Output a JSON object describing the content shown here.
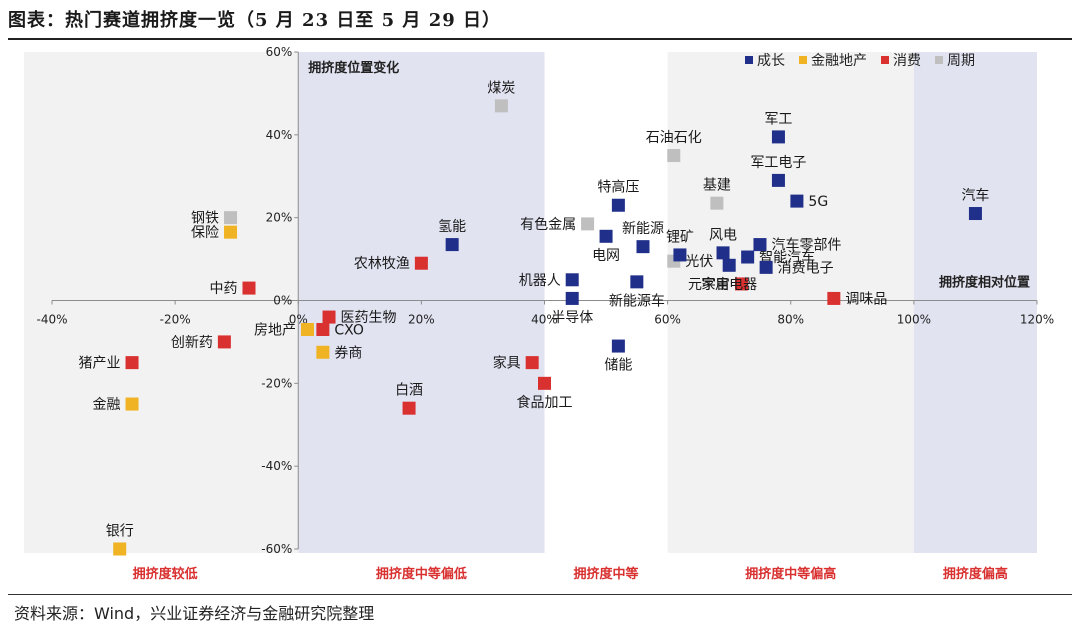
{
  "header": {
    "title": "图表：热门赛道拥挤度一览（5 月 23 日至 5 月 29 日）"
  },
  "footer": {
    "source": "资料来源：Wind，兴业证券经济与金融研究院整理"
  },
  "colors": {
    "成长": "#1f2f8a",
    "金融地产": "#f0b323",
    "消费": "#d93030",
    "周期": "#bfbfbf",
    "band_light": "#f2f2f2",
    "band_blue": "#e1e3f1",
    "zone_label": "#d93030"
  },
  "chart_data": {
    "type": "scatter",
    "title": "",
    "xlabel": "",
    "ylabel": "",
    "xlim": [
      -40,
      120
    ],
    "ylim": [
      -60,
      60
    ],
    "x_ticks": [
      -40,
      -20,
      0,
      20,
      40,
      60,
      80,
      100,
      120
    ],
    "x_tick_labels": [
      "-40%",
      "-20%",
      "0%",
      "20%",
      "40%",
      "60%",
      "80%",
      "100%",
      "120%"
    ],
    "y_ticks": [
      -60,
      -40,
      -20,
      0,
      20,
      40,
      60
    ],
    "y_tick_labels": [
      "-60%",
      "-40%",
      "-20%",
      "0%",
      "20%",
      "40%",
      "60%"
    ],
    "y_axis_title": "拥挤度位置变化",
    "x_axis_title": "拥挤度相对位置",
    "legend": {
      "position": "top-right",
      "entries": [
        {
          "name": "成长",
          "group": "成长"
        },
        {
          "name": "金融地产",
          "group": "金融地产"
        },
        {
          "name": "消费",
          "group": "消费"
        },
        {
          "name": "周期",
          "group": "周期"
        }
      ]
    },
    "zones": [
      {
        "label": "拥挤度较低",
        "x_range": [
          -40,
          0
        ],
        "style": "light"
      },
      {
        "label": "拥挤度中等偏低",
        "x_range": [
          0,
          40
        ],
        "style": "blue"
      },
      {
        "label": "拥挤度中等",
        "x_range": [
          40,
          60
        ],
        "style": "none"
      },
      {
        "label": "拥挤度中等偏高",
        "x_range": [
          60,
          100
        ],
        "style": "light"
      },
      {
        "label": "拥挤度偏高",
        "x_range": [
          100,
          120
        ],
        "style": "blue"
      }
    ],
    "points": [
      {
        "name": "煤炭",
        "group": "周期",
        "x": 33,
        "y": 47,
        "label_pos": "top"
      },
      {
        "name": "石油石化",
        "group": "周期",
        "x": 61,
        "y": 35,
        "label_pos": "top"
      },
      {
        "name": "基建",
        "group": "周期",
        "x": 68,
        "y": 23.5,
        "label_pos": "top"
      },
      {
        "name": "有色金属",
        "group": "周期",
        "x": 47,
        "y": 18.5,
        "label_pos": "left"
      },
      {
        "name": "光伏",
        "group": "周期",
        "x": 61,
        "y": 9.5,
        "label_pos": "right"
      },
      {
        "name": "钢铁",
        "group": "周期",
        "x": -11,
        "y": 20,
        "label_pos": "left"
      },
      {
        "name": "保险",
        "group": "金融地产",
        "x": -11,
        "y": 16.5,
        "label_pos": "left"
      },
      {
        "name": "房地产",
        "group": "金融地产",
        "x": 1.5,
        "y": -7,
        "label_pos": "left"
      },
      {
        "name": "券商",
        "group": "金融地产",
        "x": 4,
        "y": -12.5,
        "label_pos": "right"
      },
      {
        "name": "金融",
        "group": "金融地产",
        "x": -27,
        "y": -25,
        "label_pos": "left"
      },
      {
        "name": "银行",
        "group": "金融地产",
        "x": -29,
        "y": -60,
        "label_pos": "top"
      },
      {
        "name": "中药",
        "group": "消费",
        "x": -8,
        "y": 3,
        "label_pos": "left"
      },
      {
        "name": "农林牧渔",
        "group": "消费",
        "x": 20,
        "y": 9,
        "label_pos": "left"
      },
      {
        "name": "医药生物",
        "group": "消费",
        "x": 5,
        "y": -4,
        "label_pos": "right"
      },
      {
        "name": "CXO",
        "group": "消费",
        "x": 4,
        "y": -7,
        "label_pos": "right"
      },
      {
        "name": "创新药",
        "group": "消费",
        "x": -12,
        "y": -10,
        "label_pos": "left"
      },
      {
        "name": "猪产业",
        "group": "消费",
        "x": -27,
        "y": -15,
        "label_pos": "left"
      },
      {
        "name": "白酒",
        "group": "消费",
        "x": 18,
        "y": -26,
        "label_pos": "top"
      },
      {
        "name": "家具",
        "group": "消费",
        "x": 38,
        "y": -15,
        "label_pos": "left"
      },
      {
        "name": "食品加工",
        "group": "消费",
        "x": 40,
        "y": -20,
        "label_pos": "bottom"
      },
      {
        "name": "元宇宙",
        "group": "消费",
        "x": 72,
        "y": 4,
        "label_pos": "left"
      },
      {
        "name": "调味品",
        "group": "消费",
        "x": 87,
        "y": 0.5,
        "label_pos": "right"
      },
      {
        "name": "氢能",
        "group": "成长",
        "x": 25,
        "y": 13.5,
        "label_pos": "top"
      },
      {
        "name": "机器人",
        "group": "成长",
        "x": 44.5,
        "y": 5,
        "label_pos": "left"
      },
      {
        "name": "半导体",
        "group": "成长",
        "x": 44.5,
        "y": 0.5,
        "label_pos": "bottom"
      },
      {
        "name": "特高压",
        "group": "成长",
        "x": 52,
        "y": 23,
        "label_pos": "top"
      },
      {
        "name": "电网",
        "group": "成长",
        "x": 50,
        "y": 15.5,
        "label_pos": "bottom"
      },
      {
        "name": "新能源",
        "group": "成长",
        "x": 56,
        "y": 13,
        "label_pos": "top"
      },
      {
        "name": "锂矿",
        "group": "成长",
        "x": 62,
        "y": 11,
        "label_pos": "top"
      },
      {
        "name": "新能源车",
        "group": "成长",
        "x": 55,
        "y": 4.5,
        "label_pos": "bottom"
      },
      {
        "name": "储能",
        "group": "成长",
        "x": 52,
        "y": -11,
        "label_pos": "bottom"
      },
      {
        "name": "风电",
        "group": "成长",
        "x": 69,
        "y": 11.5,
        "label_pos": "top"
      },
      {
        "name": "智能汽车",
        "group": "成长",
        "x": 73,
        "y": 10.5,
        "label_pos": "right"
      },
      {
        "name": "汽车零部件",
        "group": "成长",
        "x": 75,
        "y": 13.5,
        "label_pos": "right"
      },
      {
        "name": "消费电子",
        "group": "成长",
        "x": 76,
        "y": 8,
        "label_pos": "right"
      },
      {
        "name": "家用电器",
        "group": "成长",
        "x": 70,
        "y": 8.5,
        "label_pos": "bottom"
      },
      {
        "name": "军工",
        "group": "成长",
        "x": 78,
        "y": 39.5,
        "label_pos": "top"
      },
      {
        "name": "军工电子",
        "group": "成长",
        "x": 78,
        "y": 29,
        "label_pos": "top"
      },
      {
        "name": "5G",
        "group": "成长",
        "x": 81,
        "y": 24,
        "label_pos": "right"
      },
      {
        "name": "汽车",
        "group": "成长",
        "x": 110,
        "y": 21,
        "label_pos": "top"
      }
    ]
  }
}
